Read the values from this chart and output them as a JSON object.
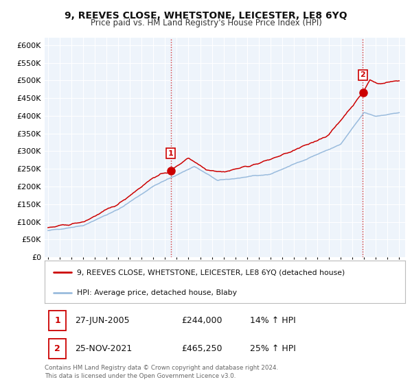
{
  "title": "9, REEVES CLOSE, WHETSTONE, LEICESTER, LE8 6YQ",
  "subtitle": "Price paid vs. HM Land Registry's House Price Index (HPI)",
  "ylim": [
    0,
    620000
  ],
  "yticks": [
    0,
    50000,
    100000,
    150000,
    200000,
    250000,
    300000,
    350000,
    400000,
    450000,
    500000,
    550000,
    600000
  ],
  "line1_color": "#cc0000",
  "line2_color": "#99bbdd",
  "vline_color": "#cc0000",
  "sale1_date_num": 2005.49,
  "sale1_price": 244000,
  "sale2_date_num": 2021.9,
  "sale2_price": 465250,
  "legend_line1": "9, REEVES CLOSE, WHETSTONE, LEICESTER, LE8 6YQ (detached house)",
  "legend_line2": "HPI: Average price, detached house, Blaby",
  "table_row1": [
    "1",
    "27-JUN-2005",
    "£244,000",
    "14% ↑ HPI"
  ],
  "table_row2": [
    "2",
    "25-NOV-2021",
    "£465,250",
    "25% ↑ HPI"
  ],
  "footer": "Contains HM Land Registry data © Crown copyright and database right 2024.\nThis data is licensed under the Open Government Licence v3.0.",
  "background_color": "#ffffff",
  "plot_bg_color": "#eef4fb",
  "grid_color": "#ffffff"
}
